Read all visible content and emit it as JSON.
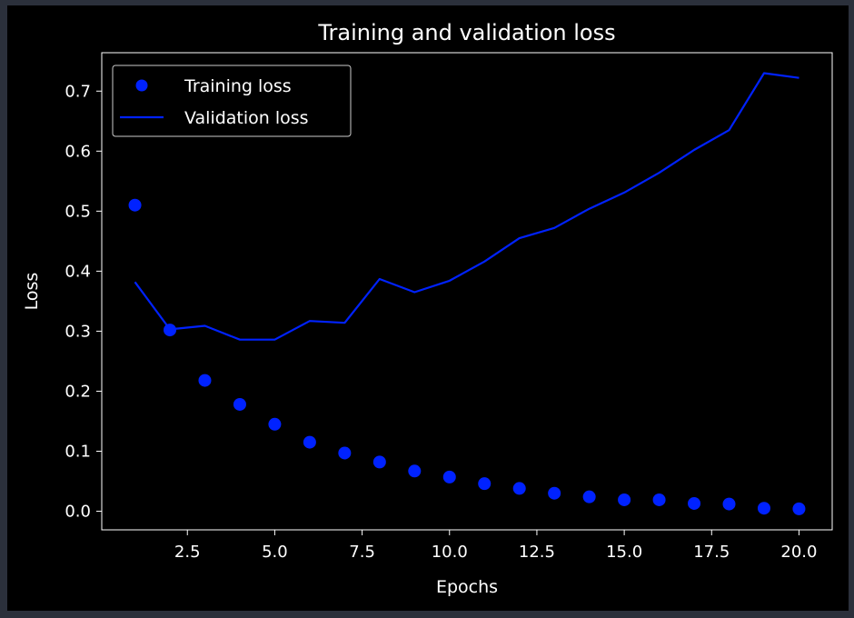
{
  "chart_data": {
    "type": "scatter",
    "title": "Training and validation loss",
    "xlabel": "Epochs",
    "ylabel": "Loss",
    "xlim": [
      0.05,
      20.95
    ],
    "ylim": [
      -0.031,
      0.764
    ],
    "xticks": [
      2.5,
      5.0,
      7.5,
      10.0,
      12.5,
      15.0,
      17.5,
      20.0
    ],
    "xtick_labels": [
      "2.5",
      "5.0",
      "7.5",
      "10.0",
      "12.5",
      "15.0",
      "17.5",
      "20.0"
    ],
    "yticks": [
      0.0,
      0.1,
      0.2,
      0.3,
      0.4,
      0.5,
      0.6,
      0.7
    ],
    "ytick_labels": [
      "0.0",
      "0.1",
      "0.2",
      "0.3",
      "0.4",
      "0.5",
      "0.6",
      "0.7"
    ],
    "grid": false,
    "legend_position": "top-left",
    "series": [
      {
        "name": "Training loss",
        "style": "points",
        "color": "#0022ff",
        "x": [
          1,
          2,
          3,
          4,
          5,
          6,
          7,
          8,
          9,
          10,
          11,
          12,
          13,
          14,
          15,
          16,
          17,
          18,
          19,
          20
        ],
        "y": [
          0.51,
          0.302,
          0.218,
          0.178,
          0.145,
          0.115,
          0.097,
          0.082,
          0.067,
          0.057,
          0.046,
          0.038,
          0.03,
          0.024,
          0.019,
          0.019,
          0.013,
          0.012,
          0.005,
          0.004
        ]
      },
      {
        "name": "Validation loss",
        "style": "line",
        "color": "#0022ff",
        "x": [
          1,
          2,
          3,
          4,
          5,
          6,
          7,
          8,
          9,
          10,
          11,
          12,
          13,
          14,
          15,
          16,
          17,
          18,
          19,
          20
        ],
        "y": [
          0.382,
          0.303,
          0.309,
          0.286,
          0.286,
          0.317,
          0.314,
          0.387,
          0.365,
          0.384,
          0.416,
          0.455,
          0.472,
          0.504,
          0.531,
          0.564,
          0.602,
          0.635,
          0.73,
          0.722
        ]
      }
    ]
  }
}
